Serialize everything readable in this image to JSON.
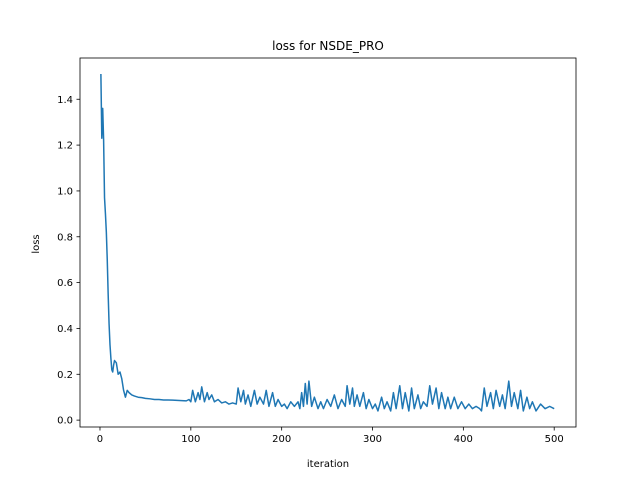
{
  "chart_data": {
    "type": "line",
    "title": "loss for NSDE_PRO",
    "xlabel": "iteration",
    "ylabel": "loss",
    "xlim": [
      -22,
      524
    ],
    "ylim": [
      -0.03,
      1.58
    ],
    "xticks": [
      0,
      100,
      200,
      300,
      400,
      500
    ],
    "yticks": [
      0.0,
      0.2,
      0.4,
      0.6,
      0.8,
      1.0,
      1.2,
      1.4
    ],
    "ytick_labels": [
      "0.0",
      "0.2",
      "0.4",
      "0.6",
      "0.8",
      "1.0",
      "1.2",
      "1.4"
    ],
    "grid": false,
    "legend": "none",
    "series": [
      {
        "color": "#1f77b4",
        "x": [
          1,
          2,
          3,
          4,
          5,
          6,
          7,
          8,
          9,
          10,
          11,
          12,
          13,
          14,
          15,
          16,
          18,
          20,
          22,
          24,
          26,
          28,
          30,
          32,
          35,
          38,
          42,
          46,
          50,
          55,
          60,
          65,
          70,
          75,
          80,
          85,
          90,
          95,
          98,
          100,
          102,
          105,
          108,
          110,
          112,
          115,
          118,
          120,
          123,
          126,
          130,
          134,
          138,
          142,
          146,
          150,
          152,
          155,
          158,
          160,
          163,
          166,
          170,
          173,
          176,
          180,
          183,
          186,
          190,
          193,
          196,
          200,
          203,
          206,
          210,
          214,
          218,
          220,
          222,
          224,
          226,
          228,
          230,
          233,
          236,
          240,
          243,
          246,
          250,
          254,
          258,
          262,
          266,
          270,
          272,
          275,
          278,
          280,
          283,
          286,
          290,
          293,
          296,
          300,
          303,
          306,
          310,
          313,
          316,
          320,
          323,
          326,
          330,
          333,
          336,
          340,
          343,
          346,
          350,
          353,
          356,
          360,
          363,
          366,
          370,
          373,
          376,
          380,
          383,
          386,
          390,
          394,
          398,
          402,
          406,
          410,
          414,
          418,
          420,
          423,
          426,
          430,
          433,
          436,
          440,
          443,
          446,
          450,
          453,
          456,
          460,
          463,
          466,
          470,
          473,
          476,
          480,
          485,
          490,
          495,
          500
        ],
        "y": [
          1.51,
          1.23,
          1.36,
          1.22,
          0.97,
          0.9,
          0.82,
          0.7,
          0.55,
          0.42,
          0.33,
          0.27,
          0.22,
          0.21,
          0.24,
          0.26,
          0.25,
          0.2,
          0.21,
          0.18,
          0.13,
          0.1,
          0.13,
          0.12,
          0.11,
          0.105,
          0.1,
          0.098,
          0.095,
          0.093,
          0.09,
          0.09,
          0.088,
          0.088,
          0.087,
          0.086,
          0.085,
          0.084,
          0.09,
          0.08,
          0.13,
          0.08,
          0.12,
          0.09,
          0.145,
          0.08,
          0.12,
          0.09,
          0.11,
          0.08,
          0.09,
          0.075,
          0.08,
          0.07,
          0.075,
          0.07,
          0.14,
          0.08,
          0.13,
          0.07,
          0.11,
          0.06,
          0.13,
          0.07,
          0.1,
          0.07,
          0.13,
          0.06,
          0.12,
          0.06,
          0.09,
          0.06,
          0.07,
          0.05,
          0.08,
          0.06,
          0.08,
          0.05,
          0.12,
          0.06,
          0.16,
          0.07,
          0.17,
          0.06,
          0.1,
          0.05,
          0.08,
          0.05,
          0.09,
          0.06,
          0.11,
          0.05,
          0.09,
          0.06,
          0.15,
          0.07,
          0.14,
          0.06,
          0.11,
          0.06,
          0.12,
          0.05,
          0.09,
          0.05,
          0.07,
          0.04,
          0.1,
          0.05,
          0.08,
          0.04,
          0.12,
          0.05,
          0.15,
          0.05,
          0.12,
          0.04,
          0.14,
          0.05,
          0.11,
          0.05,
          0.08,
          0.06,
          0.15,
          0.07,
          0.14,
          0.05,
          0.12,
          0.05,
          0.1,
          0.05,
          0.1,
          0.05,
          0.08,
          0.05,
          0.07,
          0.05,
          0.06,
          0.05,
          0.04,
          0.14,
          0.06,
          0.12,
          0.05,
          0.13,
          0.06,
          0.11,
          0.05,
          0.17,
          0.06,
          0.12,
          0.05,
          0.13,
          0.04,
          0.1,
          0.05,
          0.08,
          0.04,
          0.07,
          0.05,
          0.06,
          0.05
        ]
      }
    ]
  }
}
